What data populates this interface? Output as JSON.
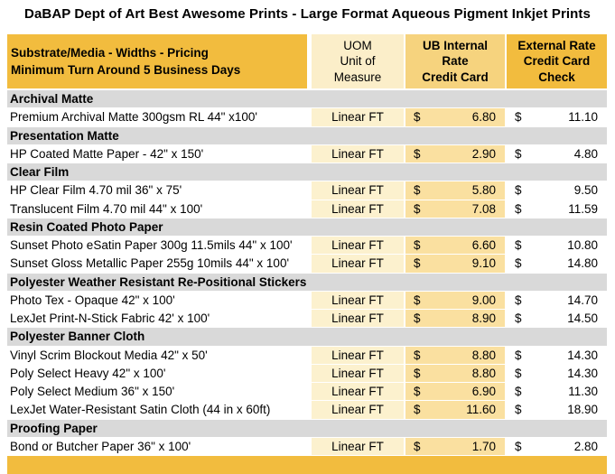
{
  "title": "DaBAP Dept of Art Best Awesome Prints - Large Format Aqueous Pigment Inkjet Prints",
  "colors": {
    "gold": "#F2BC3E",
    "gold_light_header": "#F6D37E",
    "cream_header": "#FBEEC9",
    "cream_cell": "#FCF1CE",
    "gold_cell": "#FAE0A0",
    "section_gray": "#D9D9D9",
    "text": "#000000",
    "background": "#FFFFFF"
  },
  "table": {
    "header": {
      "substrate_line1": "Substrate/Media - Widths - Pricing",
      "substrate_line2": "Minimum Turn Around 5 Business Days",
      "uom_lines": [
        "UOM",
        "Unit of",
        "Measure"
      ],
      "internal_lines": [
        "UB Internal",
        "Rate",
        "Credit Card"
      ],
      "external_lines": [
        "External Rate",
        "Credit Card",
        "Check"
      ]
    },
    "currency_symbol": "$",
    "sections": [
      {
        "name": "Archival Matte",
        "rows": [
          {
            "item": "Premium Archival Matte 300gsm RL 44\" x100'",
            "uom": "Linear FT",
            "internal": "6.80",
            "external": "11.10"
          }
        ]
      },
      {
        "name": "Presentation Matte",
        "rows": [
          {
            "item": "HP Coated Matte Paper - 42\" x 150'",
            "uom": "Linear FT",
            "internal": "2.90",
            "external": "4.80"
          }
        ]
      },
      {
        "name": "Clear Film",
        "rows": [
          {
            "item": "HP Clear Film 4.70 mil 36\" x 75'",
            "uom": "Linear FT",
            "internal": "5.80",
            "external": "9.50"
          },
          {
            "item": "Translucent Film 4.70 mil 44\" x 100'",
            "uom": "Linear FT",
            "internal": "7.08",
            "external": "11.59"
          }
        ]
      },
      {
        "name": "Resin Coated Photo Paper",
        "rows": [
          {
            "item": "Sunset Photo eSatin Paper 300g 11.5mils 44\" x 100'",
            "uom": "Linear FT",
            "internal": "6.60",
            "external": "10.80"
          },
          {
            "item": "Sunset Gloss Metallic Paper 255g 10mils 44\" x 100'",
            "uom": "Linear FT",
            "internal": "9.10",
            "external": "14.80"
          }
        ]
      },
      {
        "name": "Polyester Weather Resistant Re-Positional Stickers",
        "rows": [
          {
            "item": "Photo Tex - Opaque 42\" x 100'",
            "uom": "Linear FT",
            "internal": "9.00",
            "external": "14.70"
          },
          {
            "item": "LexJet Print-N-Stick Fabric 42' x 100'",
            "uom": "Linear FT",
            "internal": "8.90",
            "external": "14.50"
          }
        ]
      },
      {
        "name": "Polyester Banner Cloth",
        "rows": [
          {
            "item": "Vinyl Scrim Blockout Media 42\" x 50'",
            "uom": "Linear FT",
            "internal": "8.80",
            "external": "14.30"
          },
          {
            "item": "Poly Select Heavy 42\" x 100'",
            "uom": "Linear FT",
            "internal": "8.80",
            "external": "14.30"
          },
          {
            "item": "Poly Select Medium 36\" x 150'",
            "uom": "Linear FT",
            "internal": "6.90",
            "external": "11.30"
          },
          {
            "item": "LexJet Water-Resistant Satin Cloth (44 in x 60ft)",
            "uom": "Linear FT",
            "internal": "11.60",
            "external": "18.90"
          }
        ]
      },
      {
        "name": "Proofing Paper",
        "rows": [
          {
            "item": "Bond or Butcher Paper 36\" x 100'",
            "uom": "Linear FT",
            "internal": "1.70",
            "external": "2.80"
          }
        ]
      }
    ]
  }
}
